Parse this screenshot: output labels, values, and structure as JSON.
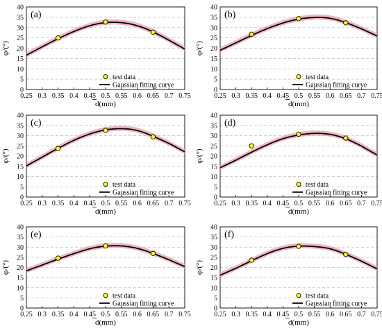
{
  "colors": {
    "curve": "#000000",
    "band": "#e8a0ac",
    "marker_fill": "#ffff00",
    "marker_stroke": "#000000",
    "grid": "#bdbdbd"
  },
  "chart_data": [
    {
      "type": "line",
      "panel": "(a)",
      "ylabel": "φ/(°)",
      "xlabel": "d(mm)",
      "xlim": [
        0.25,
        0.75
      ],
      "ylim": [
        0,
        40
      ],
      "xticks": [
        "0.25",
        "0.3",
        "0.35",
        "0.4",
        "0.45",
        "0.5",
        "0.55",
        "0.6",
        "0.65",
        "0.7",
        "0.75"
      ],
      "yticks": [
        "0",
        "5",
        "10",
        "15",
        "20",
        "25",
        "30",
        "35",
        "40"
      ],
      "grid": "horizontal dashed",
      "legend": "bottom-right",
      "legend_entries": [
        "test data",
        "Gaussian fitting curve"
      ],
      "series": [
        {
          "name": "test data",
          "kind": "scatter",
          "x": [
            0.35,
            0.5,
            0.65
          ],
          "y": [
            25.0,
            32.7,
            27.8
          ]
        },
        {
          "name": "Gaussian fitting curve",
          "kind": "line",
          "x": [
            0.25,
            0.3,
            0.35,
            0.4,
            0.45,
            0.5,
            0.55,
            0.6,
            0.65,
            0.7,
            0.75
          ],
          "y": [
            16.6,
            20.7,
            24.6,
            28.1,
            30.9,
            32.4,
            32.4,
            30.9,
            27.9,
            23.9,
            19.6
          ]
        }
      ]
    },
    {
      "type": "line",
      "panel": "(b)",
      "ylabel": "φ/(°)",
      "xlabel": "d(mm)",
      "xlim": [
        0.25,
        0.75
      ],
      "ylim": [
        0,
        40
      ],
      "xticks": [
        "0.25",
        "0.3",
        "0.35",
        "0.4",
        "0.45",
        "0.5",
        "0.55",
        "0.6",
        "0.65",
        "0.7",
        "0.75"
      ],
      "yticks": [
        "0",
        "5",
        "10",
        "15",
        "20",
        "25",
        "30",
        "35",
        "40"
      ],
      "grid": "horizontal dashed",
      "legend": "bottom-right",
      "legend_entries": [
        "test data",
        "Gaussian fitting curve"
      ],
      "series": [
        {
          "name": "test data",
          "kind": "scatter",
          "x": [
            0.35,
            0.5,
            0.65
          ],
          "y": [
            26.8,
            34.3,
            32.3
          ]
        },
        {
          "name": "Gaussian fitting curve",
          "kind": "line",
          "x": [
            0.25,
            0.3,
            0.35,
            0.4,
            0.45,
            0.5,
            0.55,
            0.6,
            0.65,
            0.7,
            0.75
          ],
          "y": [
            19.0,
            22.6,
            26.2,
            29.5,
            32.2,
            34.1,
            34.9,
            34.5,
            32.4,
            29.4,
            25.9
          ]
        }
      ]
    },
    {
      "type": "line",
      "panel": "(c)",
      "ylabel": "φ/(°)",
      "xlabel": "d(mm)",
      "xlim": [
        0.25,
        0.75
      ],
      "ylim": [
        0,
        40
      ],
      "xticks": [
        "0.25",
        "0.3",
        "0.35",
        "0.4",
        "0.45",
        "0.5",
        "0.55",
        "0.6",
        "0.65",
        "0.7",
        "0.75"
      ],
      "yticks": [
        "0",
        "5",
        "10",
        "15",
        "20",
        "25",
        "30",
        "35",
        "40"
      ],
      "grid": "horizontal dashed",
      "legend": "bottom-right",
      "legend_entries": [
        "test data",
        "Gaussian fitting curve"
      ],
      "series": [
        {
          "name": "test data",
          "kind": "scatter",
          "x": [
            0.35,
            0.5,
            0.65
          ],
          "y": [
            23.7,
            32.6,
            29.4
          ]
        },
        {
          "name": "Gaussian fitting curve",
          "kind": "line",
          "x": [
            0.25,
            0.3,
            0.35,
            0.4,
            0.45,
            0.5,
            0.55,
            0.6,
            0.65,
            0.7,
            0.75
          ],
          "y": [
            15.2,
            19.5,
            23.8,
            27.7,
            30.8,
            32.8,
            33.4,
            32.5,
            29.7,
            26.2,
            22.1
          ]
        }
      ]
    },
    {
      "type": "line",
      "panel": "(d)",
      "ylabel": "φ/(°)",
      "xlabel": "d(mm)",
      "xlim": [
        0.25,
        0.75
      ],
      "ylim": [
        0,
        40
      ],
      "xticks": [
        "0.25",
        "0.3",
        "0.35",
        "0.4",
        "0.45",
        "0.5",
        "0.55",
        "0.6",
        "0.65",
        "0.7",
        "0.75"
      ],
      "yticks": [
        "0",
        "5",
        "10",
        "15",
        "20",
        "25",
        "30",
        "35",
        "40"
      ],
      "grid": "horizontal dashed",
      "legend": "bottom-right",
      "legend_entries": [
        "test data",
        "Gaussian fitting curve"
      ],
      "series": [
        {
          "name": "test data",
          "kind": "scatter",
          "x": [
            0.35,
            0.5,
            0.65
          ],
          "y": [
            25.0,
            30.7,
            28.8
          ]
        },
        {
          "name": "Gaussian fitting curve",
          "kind": "line",
          "x": [
            0.25,
            0.3,
            0.35,
            0.4,
            0.45,
            0.5,
            0.55,
            0.6,
            0.65,
            0.7,
            0.75
          ],
          "y": [
            14.3,
            18.0,
            21.9,
            25.5,
            28.5,
            30.3,
            31.1,
            30.6,
            28.5,
            24.9,
            20.5
          ]
        }
      ]
    },
    {
      "type": "line",
      "panel": "(e)",
      "ylabel": "φ/(°)",
      "xlabel": "d(mm)",
      "xlim": [
        0.25,
        0.75
      ],
      "ylim": [
        0,
        40
      ],
      "xticks": [
        "0.25",
        "0.3",
        "0.35",
        "0.4",
        "0.45",
        "0.5",
        "0.55",
        "0.6",
        "0.65",
        "0.7",
        "0.75"
      ],
      "yticks": [
        "0",
        "5",
        "10",
        "15",
        "20",
        "25",
        "30",
        "35",
        "40"
      ],
      "grid": "horizontal dashed",
      "legend": "bottom-right",
      "legend_entries": [
        "test data",
        "Gaussian fitting curve"
      ],
      "series": [
        {
          "name": "test data",
          "kind": "scatter",
          "x": [
            0.35,
            0.5,
            0.65
          ],
          "y": [
            24.6,
            30.6,
            26.9
          ]
        },
        {
          "name": "Gaussian fitting curve",
          "kind": "line",
          "x": [
            0.25,
            0.3,
            0.35,
            0.4,
            0.45,
            0.5,
            0.55,
            0.6,
            0.65,
            0.7,
            0.75
          ],
          "y": [
            18.3,
            21.2,
            24.1,
            26.8,
            29.2,
            30.5,
            30.6,
            29.4,
            26.9,
            23.8,
            20.4
          ]
        }
      ]
    },
    {
      "type": "line",
      "panel": "(f)",
      "ylabel": "φ/(°)",
      "xlabel": "d(mm)",
      "xlim": [
        0.25,
        0.75
      ],
      "ylim": [
        0,
        40
      ],
      "xticks": [
        "0.25",
        "0.3",
        "0.35",
        "0.4",
        "0.45",
        "0.5",
        "0.55",
        "0.6",
        "0.65",
        "0.7",
        "0.75"
      ],
      "yticks": [
        "0",
        "5",
        "10",
        "15",
        "20",
        "25",
        "30",
        "35",
        "40"
      ],
      "grid": "horizontal dashed",
      "legend": "bottom-right",
      "legend_entries": [
        "test data",
        "Gaussian fitting curve"
      ],
      "series": [
        {
          "name": "test data",
          "kind": "scatter",
          "x": [
            0.35,
            0.5,
            0.65
          ],
          "y": [
            23.6,
            30.4,
            26.4
          ]
        },
        {
          "name": "Gaussian fitting curve",
          "kind": "line",
          "x": [
            0.25,
            0.3,
            0.35,
            0.4,
            0.45,
            0.5,
            0.55,
            0.6,
            0.65,
            0.7,
            0.75
          ],
          "y": [
            16.2,
            19.6,
            23.3,
            26.8,
            29.4,
            30.5,
            30.3,
            29.2,
            26.5,
            23.1,
            19.3
          ]
        }
      ]
    }
  ]
}
